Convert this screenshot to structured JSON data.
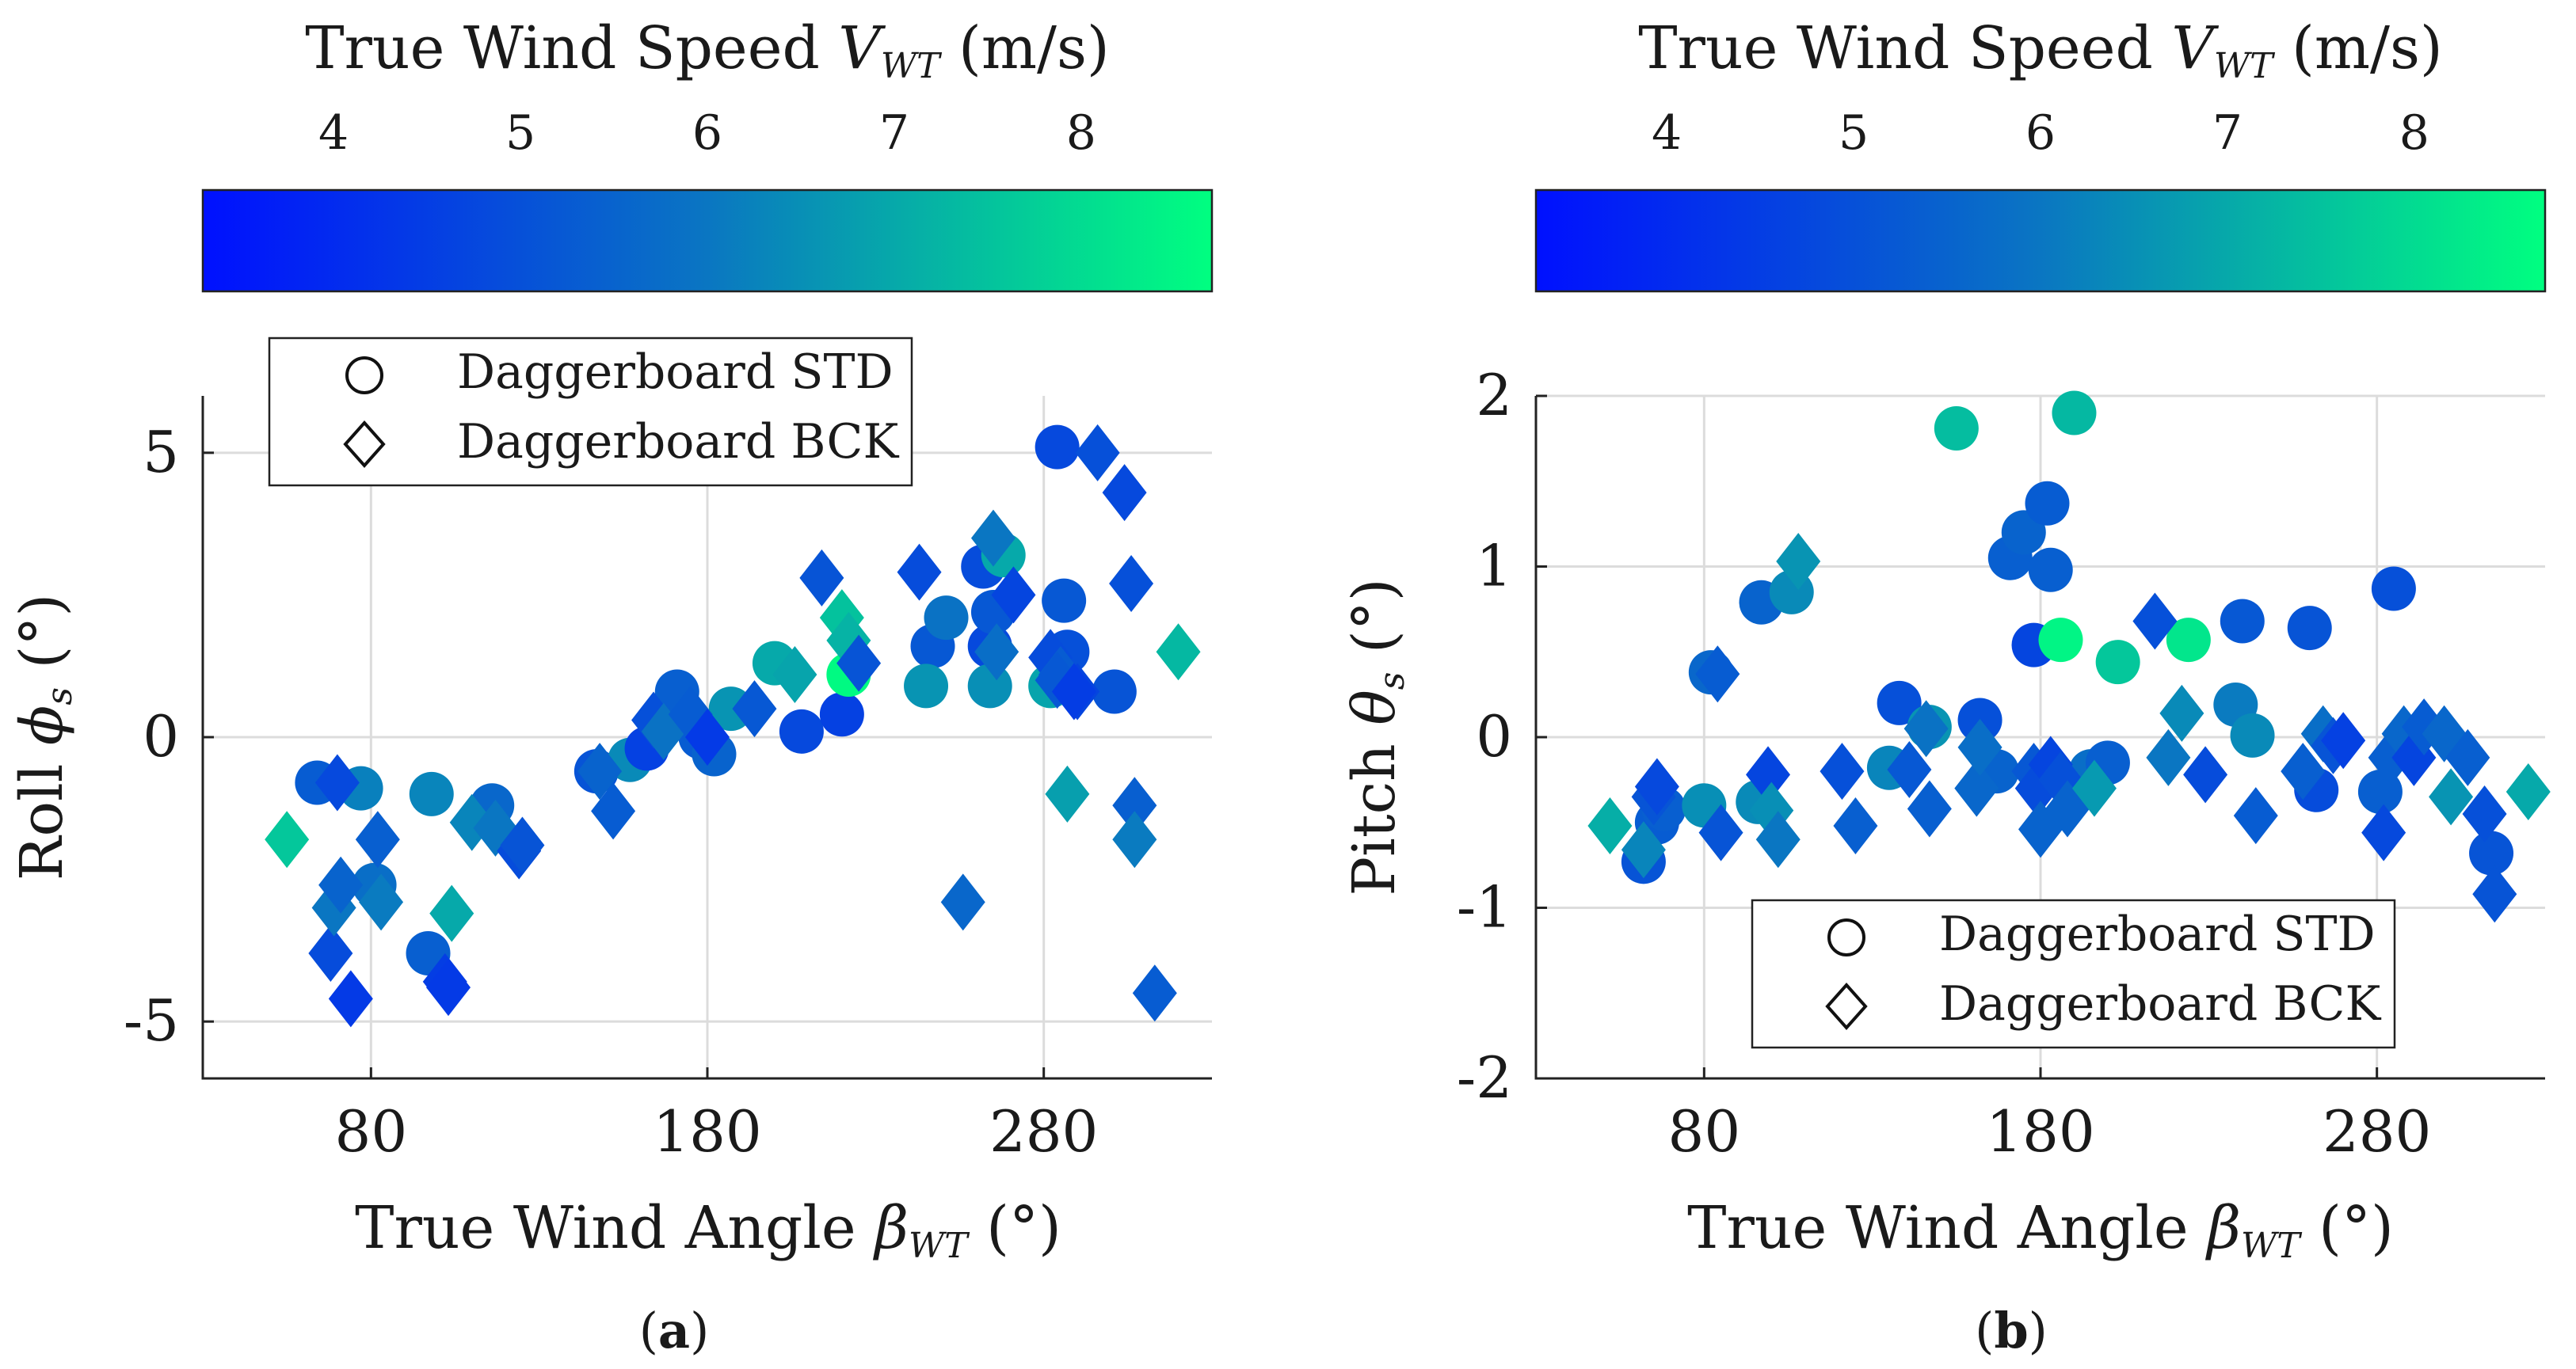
{
  "colormap": {
    "low": "#0010ff",
    "mid": "#0a76c2",
    "high": "#00ff80",
    "min": 3.3,
    "max": 8.7
  },
  "colorbar": {
    "title_prefix": "True Wind Speed ",
    "title_var": "V",
    "title_sub": "WT",
    "title_suffix": " (m/s)",
    "ticks": [
      4,
      5,
      6,
      7,
      8
    ]
  },
  "legend": {
    "std": "Daggerboard STD",
    "bck": "Daggerboard BCK"
  },
  "chart_data": [
    {
      "id": "a",
      "type": "scatter",
      "panel_label": "a",
      "xlabel_prefix": "True Wind Angle ",
      "xlabel_var": "β",
      "xlabel_sub": "WT",
      "xlabel_suffix": " (°)",
      "ylabel_prefix": "Roll ",
      "ylabel_var": "ϕ",
      "ylabel_sub": "s",
      "ylabel_suffix": " (°)",
      "xlim": [
        30,
        330
      ],
      "ylim": [
        -6,
        6
      ],
      "xticks": [
        80,
        180,
        280
      ],
      "yticks": [
        -5,
        0,
        5
      ],
      "legend_position": "top-left",
      "series": [
        {
          "name": "Daggerboard STD",
          "marker": "circle",
          "points": [
            [
              64,
              -0.8,
              5.3
            ],
            [
              77,
              -0.9,
              6.2
            ],
            [
              81,
              -2.6,
              5.8
            ],
            [
              97,
              -3.8,
              5.4
            ],
            [
              98,
              -1.0,
              6.3
            ],
            [
              116,
              -1.2,
              5.6
            ],
            [
              147,
              -0.6,
              5.1
            ],
            [
              157,
              -0.4,
              6.4
            ],
            [
              162,
              -0.2,
              4.6
            ],
            [
              171,
              0.8,
              5.4
            ],
            [
              178,
              0.0,
              5.3
            ],
            [
              182,
              -0.3,
              5.5
            ],
            [
              187,
              0.5,
              6.6
            ],
            [
              200,
              1.3,
              7.0
            ],
            [
              208,
              0.1,
              4.8
            ],
            [
              220,
              0.4,
              4.6
            ],
            [
              222,
              1.1,
              8.6
            ],
            [
              247,
              1.6,
              5.2
            ],
            [
              251,
              2.1,
              5.9
            ],
            [
              262,
              3.0,
              4.9
            ],
            [
              264,
              1.6,
              4.8
            ],
            [
              265,
              2.2,
              5.2
            ],
            [
              268,
              3.2,
              7.0
            ],
            [
              282,
              0.9,
              6.9
            ],
            [
              284,
              5.1,
              4.8
            ],
            [
              286,
              2.4,
              5.2
            ],
            [
              287,
              1.5,
              5.0
            ],
            [
              301,
              0.8,
              5.1
            ],
            [
              245,
              0.9,
              6.6
            ],
            [
              264,
              0.9,
              6.5
            ]
          ]
        },
        {
          "name": "Daggerboard BCK",
          "marker": "diamond",
          "points": [
            [
              55,
              -1.8,
              7.6
            ],
            [
              68,
              -3.8,
              4.9
            ],
            [
              69,
              -3.0,
              6.0
            ],
            [
              70,
              -0.8,
              4.8
            ],
            [
              71,
              -2.6,
              5.5
            ],
            [
              74,
              -4.6,
              4.4
            ],
            [
              82,
              -1.8,
              5.4
            ],
            [
              83,
              -2.9,
              6.1
            ],
            [
              102,
              -4.3,
              4.5
            ],
            [
              103,
              -4.4,
              4.4
            ],
            [
              104,
              -3.1,
              7.0
            ],
            [
              110,
              -1.5,
              6.3
            ],
            [
              117,
              -1.6,
              6.0
            ],
            [
              124,
              -2.0,
              4.9
            ],
            [
              125,
              -1.9,
              5.1
            ],
            [
              148,
              -0.6,
              5.5
            ],
            [
              152,
              -1.3,
              5.3
            ],
            [
              164,
              0.3,
              5.0
            ],
            [
              167,
              0.1,
              5.9
            ],
            [
              175,
              0.4,
              5.3
            ],
            [
              180,
              0.0,
              4.4
            ],
            [
              194,
              0.5,
              5.2
            ],
            [
              206,
              1.1,
              6.9
            ],
            [
              214,
              2.8,
              5.1
            ],
            [
              220,
              2.1,
              7.5
            ],
            [
              222,
              1.7,
              7.2
            ],
            [
              225,
              1.3,
              5.1
            ],
            [
              243,
              2.9,
              4.9
            ],
            [
              256,
              -2.9,
              5.6
            ],
            [
              265,
              3.5,
              6.0
            ],
            [
              266,
              1.5,
              5.8
            ],
            [
              271,
              2.5,
              4.7
            ],
            [
              282,
              1.4,
              4.9
            ],
            [
              285,
              1.1,
              5.3
            ],
            [
              287,
              -1.0,
              6.8
            ],
            [
              290,
              0.8,
              4.7
            ],
            [
              296,
              5.0,
              5.0
            ],
            [
              304,
              4.3,
              4.8
            ],
            [
              306,
              2.7,
              5.0
            ],
            [
              307,
              -1.2,
              5.4
            ],
            [
              307,
              -1.8,
              6.1
            ],
            [
              313,
              -4.5,
              5.3
            ],
            [
              320,
              1.5,
              7.3
            ],
            [
              284,
              1.0,
              5.2
            ],
            [
              289,
              0.8,
              4.5
            ]
          ]
        }
      ]
    },
    {
      "id": "b",
      "type": "scatter",
      "panel_label": "b",
      "xlabel_prefix": "True Wind Angle ",
      "xlabel_var": "β",
      "xlabel_sub": "WT",
      "xlabel_suffix": " (°)",
      "ylabel_prefix": "Pitch ",
      "ylabel_var": "θ",
      "ylabel_sub": "s",
      "ylabel_suffix": " (°)",
      "xlim": [
        30,
        330
      ],
      "ylim": [
        -2,
        2
      ],
      "xticks": [
        80,
        180,
        280
      ],
      "yticks": [
        -2,
        -1,
        0,
        1,
        2
      ],
      "legend_position": "bottom-right",
      "series": [
        {
          "name": "Daggerboard STD",
          "marker": "circle",
          "points": [
            [
              62,
              -0.73,
              5.1
            ],
            [
              66,
              -0.5,
              5.3
            ],
            [
              68,
              -0.42,
              5.4
            ],
            [
              80,
              -0.4,
              6.5
            ],
            [
              82,
              0.38,
              5.6
            ],
            [
              96,
              -0.38,
              6.4
            ],
            [
              97,
              0.79,
              5.5
            ],
            [
              106,
              0.85,
              6.4
            ],
            [
              135,
              -0.18,
              6.3
            ],
            [
              138,
              0.2,
              5.0
            ],
            [
              147,
              0.06,
              6.6
            ],
            [
              155,
              1.81,
              7.4
            ],
            [
              162,
              0.1,
              5.0
            ],
            [
              167,
              -0.2,
              5.5
            ],
            [
              171,
              1.05,
              5.4
            ],
            [
              175,
              1.2,
              5.5
            ],
            [
              178,
              0.54,
              4.7
            ],
            [
              182,
              1.37,
              5.3
            ],
            [
              183,
              0.98,
              5.4
            ],
            [
              186,
              0.57,
              8.5
            ],
            [
              190,
              1.9,
              7.3
            ],
            [
              195,
              -0.2,
              5.8
            ],
            [
              200,
              -0.15,
              5.4
            ],
            [
              203,
              0.44,
              7.6
            ],
            [
              224,
              0.57,
              8.2
            ],
            [
              238,
              0.19,
              6.1
            ],
            [
              240,
              0.68,
              5.2
            ],
            [
              243,
              0.01,
              6.4
            ],
            [
              260,
              0.64,
              5.1
            ],
            [
              262,
              -0.31,
              4.9
            ],
            [
              281,
              -0.32,
              5.4
            ],
            [
              285,
              0.87,
              5.0
            ],
            [
              314,
              -0.68,
              5.1
            ]
          ]
        },
        {
          "name": "Daggerboard BCK",
          "marker": "diamond",
          "points": [
            [
              52,
              -0.52,
              7.1
            ],
            [
              62,
              -0.66,
              6.3
            ],
            [
              65,
              -0.35,
              5.1
            ],
            [
              66,
              -0.29,
              4.8
            ],
            [
              84,
              0.37,
              5.3
            ],
            [
              85,
              -0.56,
              5.1
            ],
            [
              99,
              -0.22,
              4.7
            ],
            [
              100,
              -0.43,
              6.5
            ],
            [
              102,
              -0.6,
              6.0
            ],
            [
              108,
              1.03,
              6.6
            ],
            [
              121,
              -0.2,
              5.0
            ],
            [
              125,
              -0.52,
              5.4
            ],
            [
              141,
              -0.19,
              5.2
            ],
            [
              146,
              0.05,
              5.9
            ],
            [
              147,
              -0.42,
              5.4
            ],
            [
              161,
              -0.3,
              5.6
            ],
            [
              162,
              -0.06,
              5.8
            ],
            [
              178,
              -0.2,
              5.2
            ],
            [
              179,
              -0.3,
              4.9
            ],
            [
              180,
              -0.54,
              5.5
            ],
            [
              183,
              -0.16,
              4.7
            ],
            [
              186,
              -0.25,
              5.0
            ],
            [
              188,
              -0.42,
              5.5
            ],
            [
              196,
              -0.3,
              6.7
            ],
            [
              214,
              0.68,
              5.0
            ],
            [
              218,
              -0.12,
              6.0
            ],
            [
              222,
              0.14,
              6.4
            ],
            [
              229,
              -0.22,
              4.9
            ],
            [
              244,
              -0.46,
              5.3
            ],
            [
              258,
              -0.2,
              5.4
            ],
            [
              264,
              0.02,
              5.8
            ],
            [
              267,
              -0.05,
              5.1
            ],
            [
              270,
              -0.02,
              4.6
            ],
            [
              282,
              -0.56,
              4.8
            ],
            [
              284,
              -0.12,
              5.4
            ],
            [
              288,
              0.02,
              5.6
            ],
            [
              291,
              -0.12,
              4.7
            ],
            [
              294,
              0.06,
              5.3
            ],
            [
              300,
              0.02,
              5.6
            ],
            [
              302,
              -0.35,
              6.6
            ],
            [
              307,
              -0.12,
              5.4
            ],
            [
              312,
              -0.45,
              5.0
            ],
            [
              315,
              -0.92,
              5.1
            ],
            [
              325,
              -0.32,
              7.0
            ]
          ]
        }
      ]
    }
  ]
}
